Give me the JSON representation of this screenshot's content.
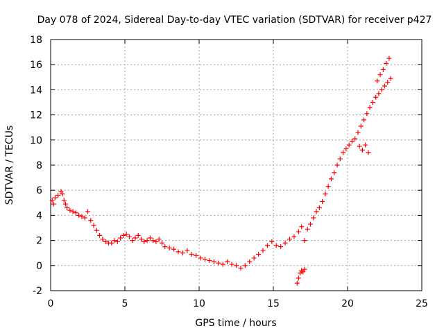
{
  "chart_data": {
    "type": "scatter",
    "title": "Day 078 of 2024, Sidereal Day-to-day VTEC variation (SDTVAR) for receiver p427",
    "xlabel": "GPS time / hours",
    "ylabel": "SDTVAR / TECUs",
    "xlim": [
      0,
      25
    ],
    "ylim": [
      -2,
      18
    ],
    "xticks": [
      0,
      5,
      10,
      15,
      20,
      25
    ],
    "yticks": [
      -2,
      0,
      2,
      4,
      6,
      8,
      10,
      12,
      14,
      16,
      18
    ],
    "xtick_labels": [
      "0",
      "5",
      "10",
      "15",
      "20",
      "25"
    ],
    "ytick_labels": [
      "-2",
      "0",
      "2",
      "4",
      "6",
      "8",
      "10",
      "12",
      "14",
      "16",
      "18"
    ],
    "grid": true,
    "marker": "plus",
    "color": "#ff0000",
    "series": [
      {
        "name": "SDTVAR",
        "points": [
          [
            0.1,
            5.2
          ],
          [
            0.2,
            4.9
          ],
          [
            0.3,
            5.4
          ],
          [
            0.5,
            5.6
          ],
          [
            0.7,
            5.9
          ],
          [
            0.8,
            5.7
          ],
          [
            0.9,
            5.2
          ],
          [
            1.0,
            4.9
          ],
          [
            1.1,
            4.6
          ],
          [
            1.3,
            4.4
          ],
          [
            1.5,
            4.3
          ],
          [
            1.7,
            4.2
          ],
          [
            1.9,
            4.0
          ],
          [
            2.1,
            3.9
          ],
          [
            2.3,
            3.8
          ],
          [
            2.5,
            4.3
          ],
          [
            2.7,
            3.6
          ],
          [
            2.9,
            3.2
          ],
          [
            3.1,
            2.8
          ],
          [
            3.3,
            2.4
          ],
          [
            3.5,
            2.1
          ],
          [
            3.7,
            1.9
          ],
          [
            3.9,
            1.8
          ],
          [
            4.1,
            1.8
          ],
          [
            4.3,
            2.0
          ],
          [
            4.5,
            1.9
          ],
          [
            4.7,
            2.2
          ],
          [
            4.9,
            2.4
          ],
          [
            5.1,
            2.5
          ],
          [
            5.3,
            2.3
          ],
          [
            5.5,
            2.0
          ],
          [
            5.7,
            2.2
          ],
          [
            5.9,
            2.4
          ],
          [
            6.1,
            2.1
          ],
          [
            6.3,
            1.9
          ],
          [
            6.5,
            2.0
          ],
          [
            6.7,
            2.2
          ],
          [
            6.9,
            2.0
          ],
          [
            7.1,
            1.9
          ],
          [
            7.3,
            2.1
          ],
          [
            7.5,
            1.8
          ],
          [
            7.7,
            1.5
          ],
          [
            8.0,
            1.4
          ],
          [
            8.3,
            1.3
          ],
          [
            8.6,
            1.1
          ],
          [
            8.9,
            1.0
          ],
          [
            9.2,
            1.2
          ],
          [
            9.5,
            0.9
          ],
          [
            9.8,
            0.8
          ],
          [
            10.1,
            0.6
          ],
          [
            10.4,
            0.5
          ],
          [
            10.7,
            0.4
          ],
          [
            11.0,
            0.3
          ],
          [
            11.3,
            0.2
          ],
          [
            11.6,
            0.1
          ],
          [
            11.9,
            0.3
          ],
          [
            12.2,
            0.1
          ],
          [
            12.5,
            0.0
          ],
          [
            12.8,
            -0.2
          ],
          [
            13.1,
            0.0
          ],
          [
            13.4,
            0.3
          ],
          [
            13.7,
            0.6
          ],
          [
            14.0,
            0.9
          ],
          [
            14.3,
            1.2
          ],
          [
            14.6,
            1.6
          ],
          [
            14.9,
            1.9
          ],
          [
            15.2,
            1.6
          ],
          [
            15.5,
            1.5
          ],
          [
            15.8,
            1.8
          ],
          [
            16.1,
            2.1
          ],
          [
            16.4,
            2.3
          ],
          [
            16.7,
            2.7
          ],
          [
            16.9,
            3.1
          ],
          [
            17.1,
            2.0
          ],
          [
            17.3,
            2.9
          ],
          [
            17.5,
            3.3
          ],
          [
            17.7,
            3.8
          ],
          [
            17.9,
            4.3
          ],
          [
            18.1,
            4.6
          ],
          [
            18.3,
            5.1
          ],
          [
            18.5,
            5.7
          ],
          [
            18.7,
            6.3
          ],
          [
            18.9,
            6.9
          ],
          [
            19.1,
            7.4
          ],
          [
            19.3,
            8.0
          ],
          [
            19.5,
            8.5
          ],
          [
            19.7,
            9.0
          ],
          [
            19.9,
            9.3
          ],
          [
            20.1,
            9.6
          ],
          [
            20.3,
            9.9
          ],
          [
            20.5,
            10.1
          ],
          [
            20.7,
            10.6
          ],
          [
            20.9,
            11.1
          ],
          [
            21.1,
            11.6
          ],
          [
            21.3,
            12.1
          ],
          [
            21.5,
            12.6
          ],
          [
            21.7,
            13.0
          ],
          [
            21.9,
            13.4
          ],
          [
            22.1,
            13.7
          ],
          [
            22.3,
            14.0
          ],
          [
            22.5,
            14.3
          ],
          [
            22.7,
            14.6
          ],
          [
            22.9,
            14.9
          ],
          [
            21.0,
            9.2
          ],
          [
            21.2,
            9.6
          ],
          [
            21.4,
            9.0
          ],
          [
            20.8,
            9.5
          ],
          [
            22.0,
            14.7
          ],
          [
            22.2,
            15.2
          ],
          [
            22.4,
            15.6
          ],
          [
            22.6,
            16.1
          ],
          [
            22.8,
            16.5
          ],
          [
            16.6,
            -1.4
          ],
          [
            16.7,
            -1.0
          ],
          [
            16.8,
            -0.6
          ],
          [
            16.9,
            -0.4
          ],
          [
            17.0,
            -0.5
          ],
          [
            17.1,
            -0.3
          ]
        ]
      }
    ]
  }
}
